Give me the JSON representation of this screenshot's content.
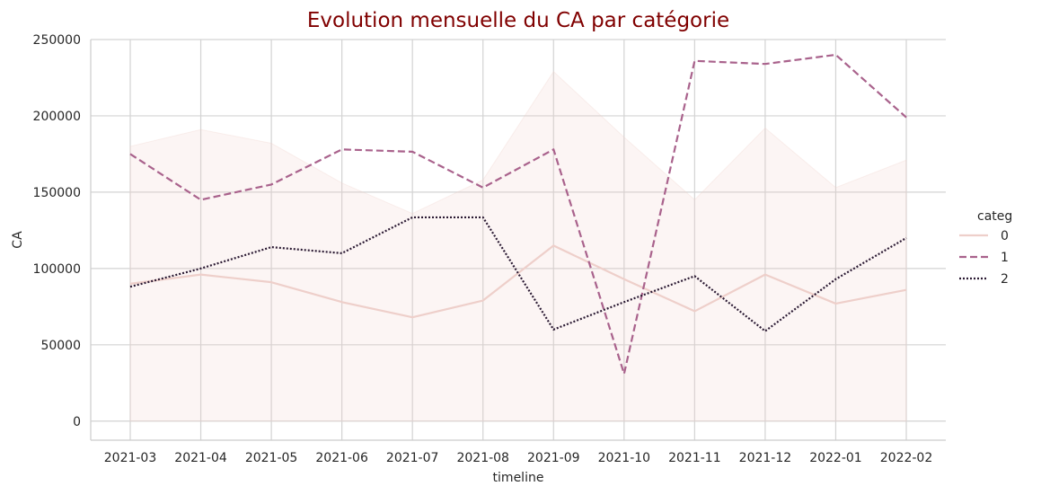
{
  "chart_data": {
    "type": "line",
    "title": "Evolution mensuelle du CA par catégorie",
    "xlabel": "timeline",
    "ylabel": "CA",
    "categories": [
      "2021-03",
      "2021-04",
      "2021-05",
      "2021-06",
      "2021-07",
      "2021-08",
      "2021-09",
      "2021-10",
      "2021-11",
      "2021-12",
      "2022-01",
      "2022-02"
    ],
    "y_ticks": [
      "0",
      "50000",
      "100000",
      "150000",
      "200000",
      "250000"
    ],
    "ylim": [
      -12500,
      250000
    ],
    "grid": true,
    "legend": {
      "title": "categ",
      "position": "right"
    },
    "series": [
      {
        "name": "0",
        "style": "solid",
        "color": "#eecfca",
        "values": [
          90000,
          96000,
          91000,
          78000,
          68000,
          79000,
          115000,
          93000,
          72000,
          96000,
          77000,
          86000
        ],
        "band_upper": [
          180000,
          191000,
          182000,
          156000,
          136000,
          158000,
          229000,
          186000,
          145000,
          192000,
          153000,
          171000
        ],
        "band_lower": [
          0,
          0,
          0,
          0,
          0,
          0,
          0,
          0,
          0,
          0,
          0,
          0
        ]
      },
      {
        "name": "1",
        "style": "dashed",
        "color": "#a9628c",
        "values": [
          175000,
          145000,
          155000,
          178000,
          176500,
          153000,
          178000,
          31000,
          236000,
          234000,
          240000,
          199000
        ]
      },
      {
        "name": "2",
        "style": "dotted",
        "color": "#2b1a33",
        "values": [
          88000,
          100000,
          114000,
          110000,
          133500,
          133500,
          60000,
          78000,
          95000,
          59000,
          93000,
          120000
        ]
      }
    ]
  }
}
